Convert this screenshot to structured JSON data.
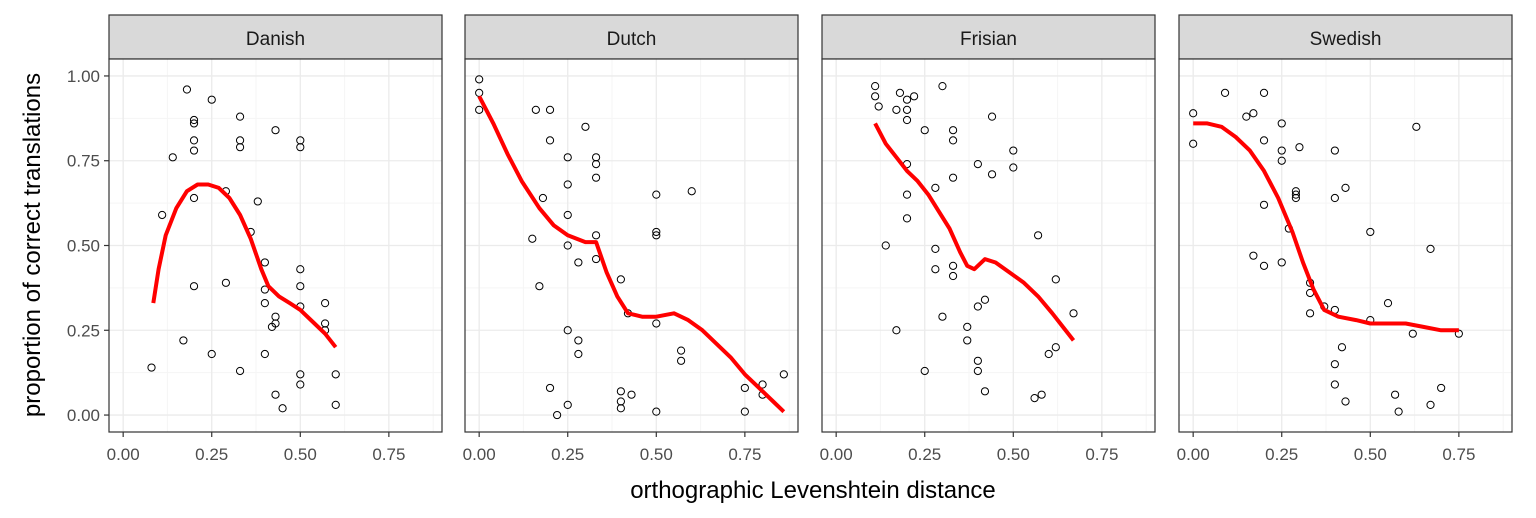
{
  "chart_data": {
    "type": "scatter",
    "xlabel": "orthographic Levenshtein distance",
    "ylabel": "proportion of correct translations",
    "xlim": [
      -0.04,
      0.9
    ],
    "ylim": [
      -0.05,
      1.05
    ],
    "x_ticks": [
      "0.00",
      "0.25",
      "0.50",
      "0.75"
    ],
    "y_ticks": [
      "0.00",
      "0.25",
      "0.50",
      "0.75",
      "1.00"
    ],
    "grid": true,
    "legend": "none",
    "colors": {
      "points": "#000000",
      "smooth": "#ff0000",
      "strip": "#d9d9d9",
      "grid_major": "#ebebeb",
      "grid_minor": "#f5f5f5",
      "border": "#333333"
    },
    "panels": [
      {
        "name": "Danish",
        "points": [
          [
            0.08,
            0.14
          ],
          [
            0.11,
            0.59
          ],
          [
            0.14,
            0.76
          ],
          [
            0.17,
            0.22
          ],
          [
            0.18,
            0.96
          ],
          [
            0.2,
            0.86
          ],
          [
            0.2,
            0.87
          ],
          [
            0.2,
            0.81
          ],
          [
            0.2,
            0.78
          ],
          [
            0.2,
            0.64
          ],
          [
            0.2,
            0.38
          ],
          [
            0.25,
            0.93
          ],
          [
            0.25,
            0.18
          ],
          [
            0.29,
            0.66
          ],
          [
            0.29,
            0.39
          ],
          [
            0.33,
            0.88
          ],
          [
            0.33,
            0.81
          ],
          [
            0.33,
            0.79
          ],
          [
            0.33,
            0.13
          ],
          [
            0.36,
            0.54
          ],
          [
            0.38,
            0.63
          ],
          [
            0.4,
            0.45
          ],
          [
            0.4,
            0.37
          ],
          [
            0.4,
            0.33
          ],
          [
            0.4,
            0.18
          ],
          [
            0.42,
            0.26
          ],
          [
            0.43,
            0.84
          ],
          [
            0.43,
            0.29
          ],
          [
            0.43,
            0.27
          ],
          [
            0.43,
            0.06
          ],
          [
            0.45,
            0.02
          ],
          [
            0.5,
            0.81
          ],
          [
            0.5,
            0.79
          ],
          [
            0.5,
            0.43
          ],
          [
            0.5,
            0.38
          ],
          [
            0.5,
            0.32
          ],
          [
            0.5,
            0.12
          ],
          [
            0.5,
            0.09
          ],
          [
            0.57,
            0.33
          ],
          [
            0.57,
            0.27
          ],
          [
            0.57,
            0.25
          ],
          [
            0.6,
            0.12
          ],
          [
            0.6,
            0.03
          ]
        ],
        "smooth": [
          [
            0.085,
            0.33
          ],
          [
            0.1,
            0.43
          ],
          [
            0.12,
            0.53
          ],
          [
            0.15,
            0.61
          ],
          [
            0.18,
            0.66
          ],
          [
            0.21,
            0.68
          ],
          [
            0.24,
            0.68
          ],
          [
            0.27,
            0.67
          ],
          [
            0.3,
            0.64
          ],
          [
            0.33,
            0.59
          ],
          [
            0.36,
            0.52
          ],
          [
            0.39,
            0.43
          ],
          [
            0.41,
            0.38
          ],
          [
            0.44,
            0.35
          ],
          [
            0.47,
            0.33
          ],
          [
            0.5,
            0.31
          ],
          [
            0.54,
            0.27
          ],
          [
            0.57,
            0.24
          ],
          [
            0.6,
            0.2
          ]
        ]
      },
      {
        "name": "Dutch",
        "points": [
          [
            0.0,
            0.99
          ],
          [
            0.0,
            0.95
          ],
          [
            0.0,
            0.9
          ],
          [
            0.15,
            0.52
          ],
          [
            0.16,
            0.9
          ],
          [
            0.17,
            0.38
          ],
          [
            0.18,
            0.64
          ],
          [
            0.2,
            0.9
          ],
          [
            0.2,
            0.81
          ],
          [
            0.2,
            0.08
          ],
          [
            0.22,
            0.0
          ],
          [
            0.25,
            0.76
          ],
          [
            0.25,
            0.68
          ],
          [
            0.25,
            0.59
          ],
          [
            0.25,
            0.5
          ],
          [
            0.25,
            0.25
          ],
          [
            0.25,
            0.03
          ],
          [
            0.28,
            0.45
          ],
          [
            0.28,
            0.22
          ],
          [
            0.28,
            0.18
          ],
          [
            0.3,
            0.85
          ],
          [
            0.33,
            0.76
          ],
          [
            0.33,
            0.74
          ],
          [
            0.33,
            0.7
          ],
          [
            0.33,
            0.53
          ],
          [
            0.33,
            0.46
          ],
          [
            0.4,
            0.4
          ],
          [
            0.4,
            0.07
          ],
          [
            0.4,
            0.04
          ],
          [
            0.4,
            0.02
          ],
          [
            0.42,
            0.3
          ],
          [
            0.43,
            0.06
          ],
          [
            0.5,
            0.65
          ],
          [
            0.5,
            0.54
          ],
          [
            0.5,
            0.53
          ],
          [
            0.5,
            0.27
          ],
          [
            0.5,
            0.01
          ],
          [
            0.6,
            0.66
          ],
          [
            0.57,
            0.19
          ],
          [
            0.57,
            0.16
          ],
          [
            0.75,
            0.08
          ],
          [
            0.75,
            0.01
          ],
          [
            0.8,
            0.09
          ],
          [
            0.8,
            0.06
          ],
          [
            0.86,
            0.12
          ]
        ],
        "smooth": [
          [
            0.0,
            0.94
          ],
          [
            0.04,
            0.86
          ],
          [
            0.08,
            0.77
          ],
          [
            0.12,
            0.69
          ],
          [
            0.17,
            0.61
          ],
          [
            0.21,
            0.56
          ],
          [
            0.25,
            0.53
          ],
          [
            0.3,
            0.51
          ],
          [
            0.33,
            0.51
          ],
          [
            0.36,
            0.42
          ],
          [
            0.39,
            0.35
          ],
          [
            0.42,
            0.3
          ],
          [
            0.46,
            0.29
          ],
          [
            0.5,
            0.29
          ],
          [
            0.55,
            0.3
          ],
          [
            0.59,
            0.28
          ],
          [
            0.63,
            0.25
          ],
          [
            0.67,
            0.21
          ],
          [
            0.71,
            0.17
          ],
          [
            0.75,
            0.12
          ],
          [
            0.8,
            0.07
          ],
          [
            0.83,
            0.04
          ],
          [
            0.86,
            0.01
          ]
        ]
      },
      {
        "name": "Frisian",
        "points": [
          [
            0.11,
            0.97
          ],
          [
            0.11,
            0.94
          ],
          [
            0.12,
            0.91
          ],
          [
            0.14,
            0.5
          ],
          [
            0.17,
            0.9
          ],
          [
            0.17,
            0.25
          ],
          [
            0.18,
            0.95
          ],
          [
            0.2,
            0.93
          ],
          [
            0.2,
            0.9
          ],
          [
            0.2,
            0.87
          ],
          [
            0.2,
            0.74
          ],
          [
            0.2,
            0.65
          ],
          [
            0.2,
            0.58
          ],
          [
            0.22,
            0.94
          ],
          [
            0.25,
            0.84
          ],
          [
            0.25,
            0.13
          ],
          [
            0.28,
            0.67
          ],
          [
            0.28,
            0.49
          ],
          [
            0.28,
            0.43
          ],
          [
            0.3,
            0.97
          ],
          [
            0.3,
            0.29
          ],
          [
            0.33,
            0.84
          ],
          [
            0.33,
            0.81
          ],
          [
            0.33,
            0.7
          ],
          [
            0.33,
            0.44
          ],
          [
            0.33,
            0.41
          ],
          [
            0.37,
            0.26
          ],
          [
            0.37,
            0.22
          ],
          [
            0.4,
            0.74
          ],
          [
            0.4,
            0.32
          ],
          [
            0.4,
            0.16
          ],
          [
            0.4,
            0.13
          ],
          [
            0.42,
            0.34
          ],
          [
            0.42,
            0.07
          ],
          [
            0.44,
            0.88
          ],
          [
            0.44,
            0.71
          ],
          [
            0.5,
            0.78
          ],
          [
            0.5,
            0.73
          ],
          [
            0.57,
            0.53
          ],
          [
            0.56,
            0.05
          ],
          [
            0.58,
            0.06
          ],
          [
            0.6,
            0.18
          ],
          [
            0.62,
            0.4
          ],
          [
            0.62,
            0.2
          ],
          [
            0.67,
            0.3
          ]
        ],
        "smooth": [
          [
            0.11,
            0.86
          ],
          [
            0.14,
            0.8
          ],
          [
            0.17,
            0.76
          ],
          [
            0.2,
            0.72
          ],
          [
            0.23,
            0.69
          ],
          [
            0.26,
            0.65
          ],
          [
            0.29,
            0.6
          ],
          [
            0.32,
            0.55
          ],
          [
            0.35,
            0.48
          ],
          [
            0.37,
            0.44
          ],
          [
            0.39,
            0.43
          ],
          [
            0.42,
            0.46
          ],
          [
            0.45,
            0.45
          ],
          [
            0.49,
            0.42
          ],
          [
            0.53,
            0.39
          ],
          [
            0.57,
            0.35
          ],
          [
            0.61,
            0.3
          ],
          [
            0.64,
            0.26
          ],
          [
            0.67,
            0.22
          ]
        ]
      },
      {
        "name": "Swedish",
        "points": [
          [
            0.0,
            0.89
          ],
          [
            0.0,
            0.8
          ],
          [
            0.09,
            0.95
          ],
          [
            0.15,
            0.88
          ],
          [
            0.17,
            0.89
          ],
          [
            0.17,
            0.47
          ],
          [
            0.2,
            0.95
          ],
          [
            0.2,
            0.81
          ],
          [
            0.2,
            0.62
          ],
          [
            0.2,
            0.44
          ],
          [
            0.25,
            0.86
          ],
          [
            0.25,
            0.78
          ],
          [
            0.25,
            0.75
          ],
          [
            0.25,
            0.45
          ],
          [
            0.27,
            0.55
          ],
          [
            0.29,
            0.66
          ],
          [
            0.29,
            0.65
          ],
          [
            0.29,
            0.64
          ],
          [
            0.3,
            0.79
          ],
          [
            0.33,
            0.39
          ],
          [
            0.33,
            0.36
          ],
          [
            0.33,
            0.3
          ],
          [
            0.37,
            0.32
          ],
          [
            0.4,
            0.78
          ],
          [
            0.4,
            0.64
          ],
          [
            0.4,
            0.31
          ],
          [
            0.4,
            0.15
          ],
          [
            0.4,
            0.09
          ],
          [
            0.42,
            0.2
          ],
          [
            0.43,
            0.67
          ],
          [
            0.43,
            0.04
          ],
          [
            0.5,
            0.54
          ],
          [
            0.5,
            0.28
          ],
          [
            0.55,
            0.33
          ],
          [
            0.57,
            0.06
          ],
          [
            0.58,
            0.01
          ],
          [
            0.62,
            0.24
          ],
          [
            0.63,
            0.85
          ],
          [
            0.67,
            0.49
          ],
          [
            0.67,
            0.03
          ],
          [
            0.7,
            0.08
          ],
          [
            0.75,
            0.24
          ]
        ],
        "smooth": [
          [
            0.0,
            0.86
          ],
          [
            0.04,
            0.86
          ],
          [
            0.08,
            0.85
          ],
          [
            0.12,
            0.82
          ],
          [
            0.16,
            0.78
          ],
          [
            0.2,
            0.72
          ],
          [
            0.24,
            0.64
          ],
          [
            0.28,
            0.54
          ],
          [
            0.31,
            0.45
          ],
          [
            0.34,
            0.37
          ],
          [
            0.37,
            0.31
          ],
          [
            0.41,
            0.29
          ],
          [
            0.46,
            0.28
          ],
          [
            0.5,
            0.27
          ],
          [
            0.55,
            0.27
          ],
          [
            0.6,
            0.27
          ],
          [
            0.65,
            0.26
          ],
          [
            0.7,
            0.25
          ],
          [
            0.75,
            0.25
          ]
        ]
      }
    ]
  }
}
